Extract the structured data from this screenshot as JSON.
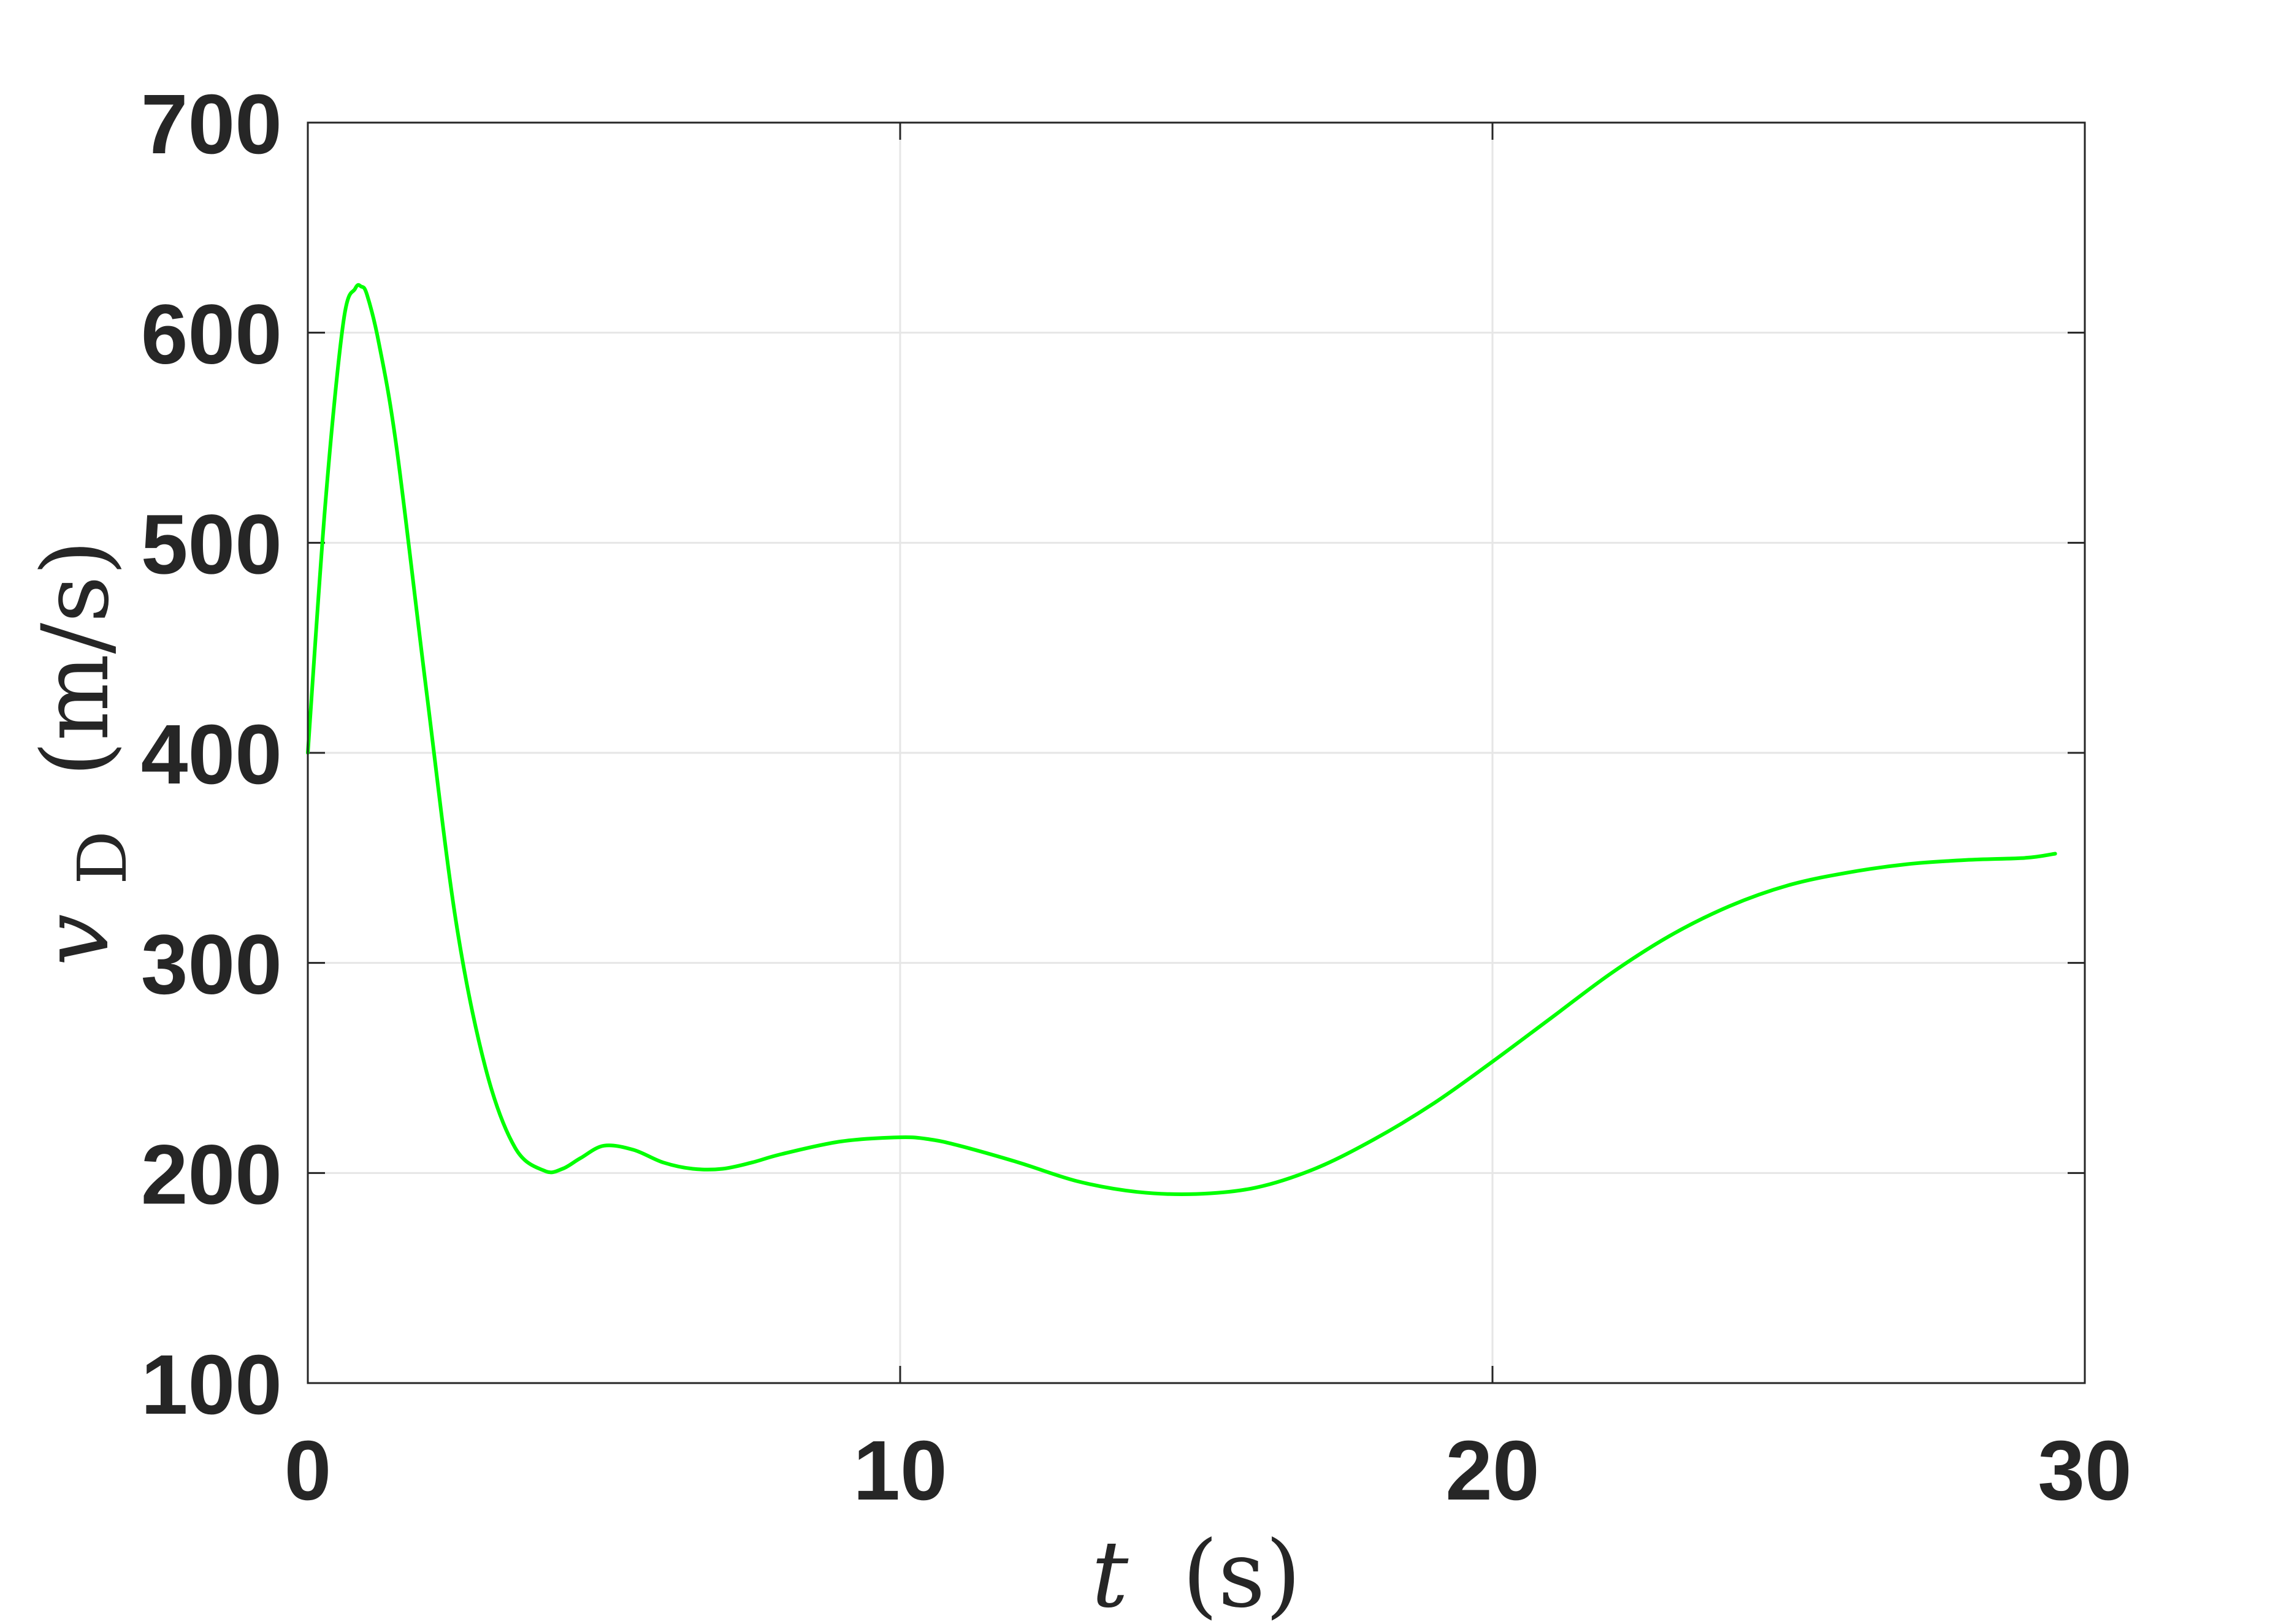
{
  "chart_data": {
    "type": "line",
    "xlabel_var": "t",
    "xlabel_unit": "(s)",
    "ylabel_var": "v",
    "ylabel_sub": "D",
    "ylabel_unit": "(m/s)",
    "xlim": [
      0,
      30
    ],
    "ylim": [
      100,
      700
    ],
    "xticks": [
      0,
      10,
      20,
      30
    ],
    "yticks": [
      100,
      200,
      300,
      400,
      500,
      600,
      700
    ],
    "xtick_labels": [
      "0",
      "10",
      "20",
      "30"
    ],
    "ytick_labels": [
      "100",
      "200",
      "300",
      "400",
      "500",
      "600",
      "700"
    ],
    "grid": true,
    "series": [
      {
        "color": "#00ff00",
        "x": [
          0,
          0.3,
          0.6,
          0.8,
          0.9,
          1.0,
          1.2,
          1.5,
          2.0,
          2.5,
          3.0,
          3.5,
          4.0,
          4.3,
          4.6,
          5.0,
          5.5,
          6.0,
          6.5,
          7.0,
          7.5,
          8.0,
          9.0,
          10.0,
          10.5,
          11.0,
          12.0,
          13.0,
          14.0,
          15.0,
          16.0,
          17.0,
          18.0,
          19.0,
          20.0,
          21.0,
          22.0,
          23.0,
          24.0,
          25.0,
          26.0,
          27.0,
          28.0,
          29.0,
          29.5
        ],
        "y": [
          400,
          520,
          605,
          621,
          622,
          618,
          595,
          545,
          430,
          320,
          250,
          212,
          201,
          202,
          207,
          213,
          211,
          205,
          202,
          202,
          205,
          209,
          215,
          217,
          216,
          213,
          205,
          196,
          191,
          190,
          193,
          202,
          216,
          233,
          253,
          274,
          295,
          313,
          327,
          337,
          343,
          347,
          349,
          350,
          352
        ]
      }
    ]
  }
}
